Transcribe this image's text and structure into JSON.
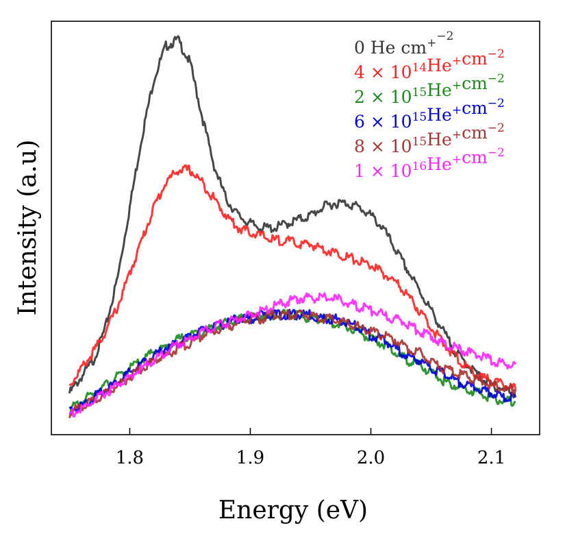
{
  "chart_data": {
    "type": "line",
    "title": "",
    "xlabel": "Energy (eV)",
    "ylabel": "Intensity (a.u)",
    "xlim": [
      1.735,
      2.14
    ],
    "ylim": [
      0.0,
      1.0
    ],
    "xticks": [
      1.8,
      1.9,
      2.0,
      2.1
    ],
    "xtick_labels": [
      "1.8",
      "1.9",
      "2.0",
      "2.1"
    ],
    "yticks_shown": false,
    "grid": false,
    "legend_position": "top-right",
    "x": [
      1.75,
      1.76,
      1.77,
      1.78,
      1.79,
      1.8,
      1.81,
      1.82,
      1.83,
      1.84,
      1.85,
      1.86,
      1.87,
      1.88,
      1.89,
      1.9,
      1.91,
      1.92,
      1.93,
      1.94,
      1.95,
      1.96,
      1.97,
      1.98,
      1.99,
      2.0,
      2.01,
      2.02,
      2.03,
      2.04,
      2.05,
      2.06,
      2.07,
      2.08,
      2.09,
      2.1,
      2.11,
      2.12
    ],
    "series": [
      {
        "name": "0 He⁺ cm⁻²",
        "legend": {
          "lead": "0 He",
          "sup1": "+",
          "mid": " cm",
          "sup2": "−2"
        },
        "color": "#333333",
        "values": [
          0.1,
          0.14,
          0.18,
          0.26,
          0.38,
          0.55,
          0.72,
          0.86,
          0.94,
          0.955,
          0.9,
          0.77,
          0.65,
          0.57,
          0.53,
          0.51,
          0.5,
          0.5,
          0.51,
          0.52,
          0.53,
          0.55,
          0.56,
          0.56,
          0.55,
          0.53,
          0.5,
          0.45,
          0.4,
          0.35,
          0.3,
          0.25,
          0.2,
          0.17,
          0.14,
          0.12,
          0.11,
          0.1
        ]
      },
      {
        "name": "4 × 10¹⁴He⁺cm⁻²",
        "legend": {
          "lead": "4 × 10",
          "exp": "14",
          "mid": "He",
          "sup1": "+",
          "tail": "cm",
          "sup2": "−2"
        },
        "color": "#ff2020",
        "values": [
          0.12,
          0.16,
          0.2,
          0.25,
          0.31,
          0.39,
          0.47,
          0.55,
          0.61,
          0.64,
          0.64,
          0.61,
          0.57,
          0.53,
          0.5,
          0.49,
          0.48,
          0.47,
          0.47,
          0.46,
          0.46,
          0.45,
          0.44,
          0.43,
          0.42,
          0.41,
          0.39,
          0.37,
          0.34,
          0.3,
          0.26,
          0.22,
          0.19,
          0.16,
          0.14,
          0.13,
          0.12,
          0.11
        ]
      },
      {
        "name": "2 × 10¹⁵He⁺cm⁻²",
        "legend": {
          "lead": "2 × 10",
          "exp": "15",
          "mid": "He",
          "sup1": "+",
          "tail": "cm",
          "sup2": "−2"
        },
        "color": "#1a8a1a",
        "values": [
          0.06,
          0.08,
          0.1,
          0.12,
          0.14,
          0.16,
          0.18,
          0.2,
          0.21,
          0.23,
          0.24,
          0.25,
          0.26,
          0.27,
          0.28,
          0.28,
          0.29,
          0.29,
          0.29,
          0.29,
          0.28,
          0.28,
          0.27,
          0.26,
          0.25,
          0.23,
          0.22,
          0.2,
          0.18,
          0.17,
          0.15,
          0.13,
          0.12,
          0.11,
          0.1,
          0.09,
          0.08,
          0.08
        ]
      },
      {
        "name": "6 × 10¹⁵He⁺cm⁻²",
        "legend": {
          "lead": "6 × 10",
          "exp": "15",
          "mid": "He",
          "sup1": "+",
          "tail": "cm",
          "sup2": "−2"
        },
        "color": "#0000dd",
        "values": [
          0.06,
          0.07,
          0.09,
          0.11,
          0.13,
          0.15,
          0.17,
          0.19,
          0.21,
          0.22,
          0.24,
          0.25,
          0.26,
          0.27,
          0.28,
          0.28,
          0.29,
          0.29,
          0.29,
          0.29,
          0.29,
          0.28,
          0.28,
          0.27,
          0.26,
          0.24,
          0.23,
          0.21,
          0.19,
          0.18,
          0.16,
          0.15,
          0.13,
          0.12,
          0.11,
          0.1,
          0.09,
          0.09
        ]
      },
      {
        "name": "8 × 10¹⁵He⁺cm⁻²",
        "legend": {
          "lead": "8 × 10",
          "exp": "15",
          "mid": "He",
          "sup1": "+",
          "tail": "cm",
          "sup2": "−2"
        },
        "color": "#a83232",
        "values": [
          0.05,
          0.07,
          0.08,
          0.1,
          0.12,
          0.14,
          0.16,
          0.18,
          0.19,
          0.21,
          0.22,
          0.24,
          0.25,
          0.26,
          0.27,
          0.28,
          0.28,
          0.29,
          0.29,
          0.29,
          0.29,
          0.28,
          0.28,
          0.27,
          0.26,
          0.25,
          0.24,
          0.23,
          0.21,
          0.2,
          0.18,
          0.16,
          0.15,
          0.14,
          0.13,
          0.12,
          0.11,
          0.11
        ]
      },
      {
        "name": "1 × 10¹⁶He⁺cm⁻²",
        "legend": {
          "lead": "1 × 10",
          "exp": "16",
          "mid": "He",
          "sup1": "+",
          "tail": "cm",
          "sup2": "−2"
        },
        "color": "#ff22ff",
        "values": [
          0.05,
          0.06,
          0.08,
          0.1,
          0.12,
          0.14,
          0.16,
          0.18,
          0.2,
          0.22,
          0.23,
          0.25,
          0.26,
          0.27,
          0.28,
          0.29,
          0.3,
          0.31,
          0.32,
          0.33,
          0.33,
          0.33,
          0.33,
          0.32,
          0.31,
          0.3,
          0.29,
          0.28,
          0.27,
          0.25,
          0.24,
          0.22,
          0.21,
          0.2,
          0.19,
          0.18,
          0.17,
          0.17
        ]
      }
    ]
  }
}
